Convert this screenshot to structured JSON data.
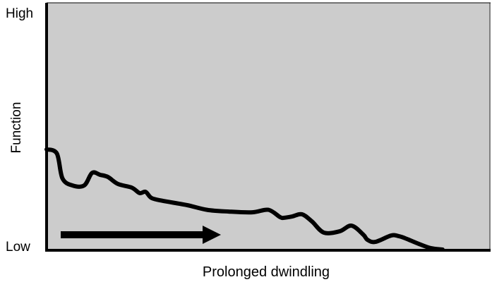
{
  "chart_data": {
    "type": "line",
    "title": "",
    "xlabel": "Prolonged dwindling",
    "ylabel": "Function",
    "y_ticks": [
      "High",
      "Low"
    ],
    "ylim": [
      0,
      1
    ],
    "xlim": [
      0,
      1
    ],
    "grid": false,
    "background_color": "#cccccc",
    "line_color": "#000000",
    "arrow_color": "#000000",
    "annotation": "right-pointing arrow near the bottom-left indicating the passage of time",
    "series": [
      {
        "x": [
          0.0,
          0.026,
          0.04,
          0.065,
          0.095,
          0.115,
          0.135,
          0.155,
          0.18,
          0.215,
          0.235,
          0.25,
          0.265,
          0.295,
          0.355,
          0.405,
          0.46,
          0.52,
          0.56,
          0.59,
          0.6,
          0.62,
          0.645,
          0.67,
          0.7,
          0.74,
          0.77,
          0.8,
          0.81,
          0.83,
          0.87,
          0.89,
          0.91,
          0.94,
          0.97,
          1.0
        ],
        "y": [
          0.406,
          0.389,
          0.289,
          0.26,
          0.26,
          0.311,
          0.303,
          0.294,
          0.266,
          0.251,
          0.229,
          0.234,
          0.209,
          0.197,
          0.18,
          0.161,
          0.154,
          0.151,
          0.161,
          0.131,
          0.129,
          0.134,
          0.143,
          0.114,
          0.069,
          0.074,
          0.097,
          0.06,
          0.04,
          0.031,
          0.057,
          0.054,
          0.043,
          0.023,
          0.006,
          0.0
        ]
      }
    ]
  }
}
